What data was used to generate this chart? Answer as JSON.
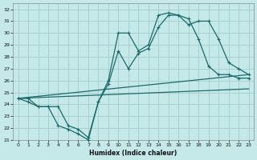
{
  "title": "",
  "xlabel": "Humidex (Indice chaleur)",
  "ylabel": "",
  "background_color": "#c5e8e8",
  "grid_color": "#a8d0d0",
  "line_color": "#1a6b6b",
  "xlim": [
    -0.5,
    23.5
  ],
  "ylim": [
    21,
    32.5
  ],
  "yticks": [
    21,
    22,
    23,
    24,
    25,
    26,
    27,
    28,
    29,
    30,
    31,
    32
  ],
  "xticks": [
    0,
    1,
    2,
    3,
    4,
    5,
    6,
    7,
    8,
    9,
    10,
    11,
    12,
    13,
    14,
    15,
    16,
    17,
    18,
    19,
    20,
    21,
    22,
    23
  ],
  "series": [
    {
      "x": [
        0,
        1,
        2,
        3,
        4,
        5,
        6,
        7,
        8,
        9,
        10,
        11,
        12,
        13,
        14,
        15,
        16,
        17,
        18,
        19,
        20,
        21,
        22,
        23
      ],
      "y": [
        24.5,
        24.5,
        23.8,
        23.8,
        22.2,
        21.9,
        21.5,
        21.0,
        24.2,
        26.0,
        30.0,
        30.0,
        28.5,
        29.0,
        31.5,
        31.7,
        31.5,
        31.2,
        29.5,
        27.2,
        26.5,
        26.5,
        26.2,
        26.2
      ],
      "has_markers": true
    },
    {
      "x": [
        0,
        1,
        2,
        3,
        4,
        5,
        6,
        7,
        8,
        9,
        10,
        11,
        12,
        13,
        14,
        15,
        16,
        17,
        18,
        19,
        20,
        21,
        22,
        23
      ],
      "y": [
        24.5,
        24.2,
        23.8,
        23.8,
        23.8,
        22.2,
        21.9,
        21.2,
        24.2,
        25.7,
        28.5,
        27.0,
        28.3,
        28.7,
        30.5,
        31.5,
        31.5,
        30.7,
        31.0,
        31.0,
        29.5,
        27.5,
        27.0,
        26.5
      ],
      "has_markers": true
    },
    {
      "x": [
        0,
        23
      ],
      "y": [
        24.5,
        26.5
      ],
      "has_markers": false
    },
    {
      "x": [
        0,
        23
      ],
      "y": [
        24.5,
        25.3
      ],
      "has_markers": false
    }
  ]
}
